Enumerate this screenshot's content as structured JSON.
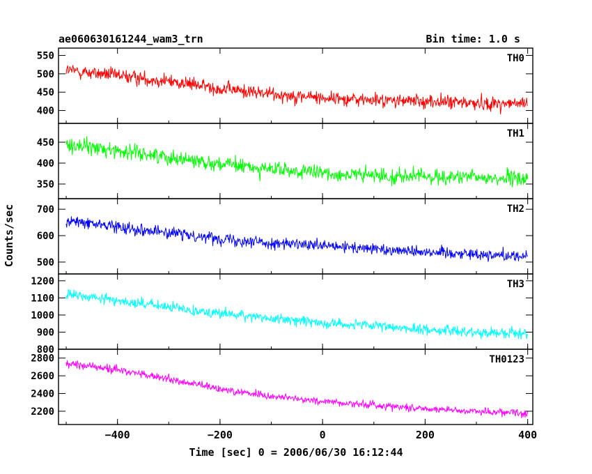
{
  "chart_data": {
    "type": "line",
    "title": "ae060630161244_wam3_trn",
    "subtitle": "Bin time: 1.0 s",
    "xlabel": "Time [sec] 0 = 2006/06/30 16:12:44",
    "ylabel": "Counts/sec",
    "xlim": [
      -515,
      410
    ],
    "x_ticks": [
      -400,
      -200,
      0,
      200,
      400
    ],
    "x_tick_labels": [
      "−400",
      "−200",
      "0",
      "200",
      "400"
    ],
    "x_data_range": [
      -500,
      400
    ],
    "grid": false,
    "legend": "none",
    "panels": [
      {
        "name": "TH0",
        "color": "#ff0000",
        "ylim": [
          365,
          570
        ],
        "y_ticks": [
          400,
          450,
          500,
          550
        ],
        "x": [
          -500,
          -400,
          -300,
          -200,
          -100,
          0,
          100,
          200,
          300,
          400
        ],
        "y": [
          510,
          495,
          480,
          460,
          445,
          435,
          428,
          425,
          420,
          418
        ]
      },
      {
        "name": "TH1",
        "color": "#00ff00",
        "ylim": [
          315,
          495
        ],
        "y_ticks": [
          350,
          400,
          450
        ],
        "x": [
          -500,
          -400,
          -300,
          -200,
          -100,
          0,
          100,
          200,
          300,
          400
        ],
        "y": [
          445,
          430,
          415,
          398,
          385,
          375,
          370,
          368,
          365,
          362
        ]
      },
      {
        "name": "TH2",
        "color": "#0000ff",
        "ylim": [
          455,
          740
        ],
        "y_ticks": [
          500,
          600,
          700
        ],
        "x": [
          -500,
          -400,
          -300,
          -200,
          -100,
          0,
          100,
          200,
          300,
          400
        ],
        "y": [
          655,
          635,
          610,
          590,
          572,
          560,
          550,
          540,
          530,
          522
        ]
      },
      {
        "name": "TH3",
        "color": "#00ffff",
        "ylim": [
          800,
          1240
        ],
        "y_ticks": [
          800,
          900,
          1000,
          1100,
          1200
        ],
        "x": [
          -500,
          -400,
          -300,
          -200,
          -100,
          0,
          100,
          200,
          300,
          400
        ],
        "y": [
          1120,
          1085,
          1045,
          1010,
          980,
          955,
          935,
          915,
          900,
          892
        ]
      },
      {
        "name": "TH0123",
        "color": "#ff00ff",
        "ylim": [
          2050,
          2900
        ],
        "y_ticks": [
          2200,
          2400,
          2600,
          2800
        ],
        "x": [
          -500,
          -400,
          -300,
          -200,
          -100,
          0,
          100,
          200,
          300,
          400
        ],
        "y": [
          2740,
          2670,
          2560,
          2450,
          2370,
          2310,
          2270,
          2230,
          2200,
          2180
        ]
      }
    ]
  }
}
